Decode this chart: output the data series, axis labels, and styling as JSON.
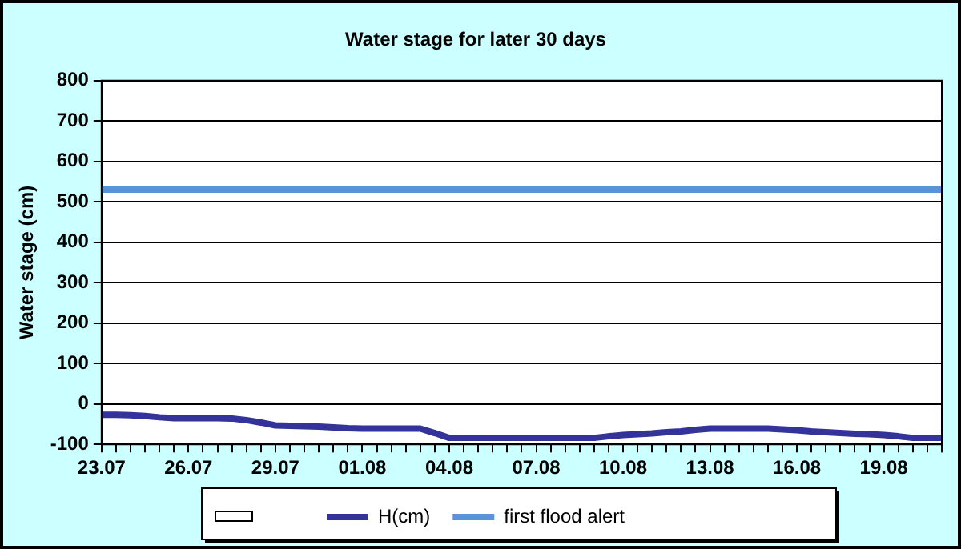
{
  "chart_data": {
    "type": "line",
    "title": "Water stage for later 30 days",
    "ylabel": "Water stage (cm)",
    "categories": [
      "23.07",
      null,
      null,
      null,
      null,
      null,
      "26.07",
      null,
      null,
      null,
      null,
      null,
      "29.07",
      null,
      null,
      null,
      null,
      null,
      "01.08",
      null,
      null,
      null,
      null,
      null,
      "04.08",
      null,
      null,
      null,
      null,
      null,
      "07.08",
      null,
      null,
      null,
      null,
      null,
      "10.08",
      null,
      null,
      null,
      null,
      null,
      "13.08",
      null,
      null,
      null,
      null,
      null,
      "16.08",
      null,
      null,
      null,
      null,
      null,
      "19.08",
      null,
      null,
      null,
      null
    ],
    "series": [
      {
        "name": "H(cm)",
        "color": "#333399",
        "values": [
          -27,
          -27,
          -28,
          -30,
          -33,
          -35,
          -35,
          -35,
          -35,
          -36,
          -40,
          -46,
          -53,
          -54,
          -55,
          -56,
          -58,
          -60,
          -61,
          -61,
          -61,
          -61,
          -61,
          -72,
          -84,
          -84,
          -84,
          -84,
          -84,
          -84,
          -84,
          -84,
          -84,
          -84,
          -84,
          -80,
          -77,
          -75,
          -73,
          -70,
          -68,
          -64,
          -61,
          -61,
          -61,
          -61,
          -61,
          -63,
          -65,
          -68,
          -70,
          -72,
          -74,
          -75,
          -77,
          -80,
          -84,
          -84,
          -84
        ]
      },
      {
        "name": "first flood alert",
        "color": "#5b93d9",
        "values": [
          530,
          530,
          530,
          530,
          530,
          530,
          530,
          530,
          530,
          530,
          530,
          530,
          530,
          530,
          530,
          530,
          530,
          530,
          530,
          530,
          530,
          530,
          530,
          530,
          530,
          530,
          530,
          530,
          530,
          530,
          530,
          530,
          530,
          530,
          530,
          530,
          530,
          530,
          530,
          530,
          530,
          530,
          530,
          530,
          530,
          530,
          530,
          530,
          530,
          530,
          530,
          530,
          530,
          530,
          530,
          530,
          530,
          530,
          530
        ]
      }
    ],
    "ylim": [
      -100,
      800
    ],
    "yticks": [
      -100,
      0,
      100,
      200,
      300,
      400,
      500,
      600,
      700,
      800
    ],
    "grid": "y",
    "legend": "bottom",
    "marker": "none",
    "line_style": "solid"
  }
}
